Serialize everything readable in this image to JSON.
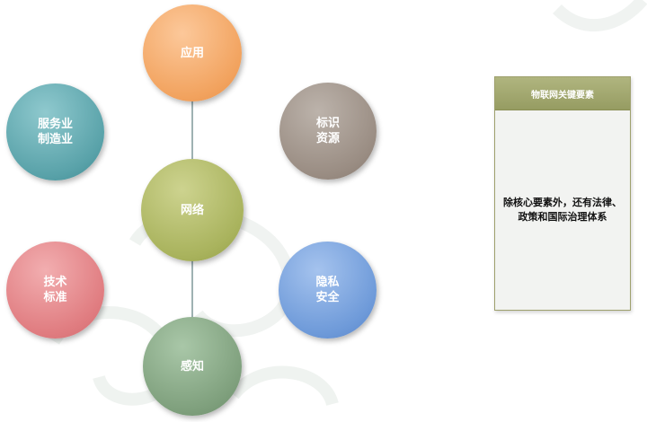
{
  "nodes": {
    "app": {
      "line1": "应用"
    },
    "service": {
      "line1": "服务业",
      "line2": "制造业"
    },
    "id": {
      "line1": "标识",
      "line2": "资源"
    },
    "network": {
      "line1": "网络"
    },
    "tech": {
      "line1": "技术",
      "line2": "标准"
    },
    "privacy": {
      "line1": "隐私",
      "line2": "安全"
    },
    "sense": {
      "line1": "感知"
    }
  },
  "panel": {
    "title": "物联网关键要素",
    "line1": "除核心要素外，还有法律、",
    "line2": "政策和国际治理体系"
  },
  "colors": {
    "app": "#f2a35f",
    "service": "#59a2a9",
    "id": "#9a8d83",
    "network": "#a9b35d",
    "tech": "#e07c80",
    "privacy": "#6e9ad9",
    "sense": "#7fa07d",
    "panel_header": "#a4aa6f"
  }
}
